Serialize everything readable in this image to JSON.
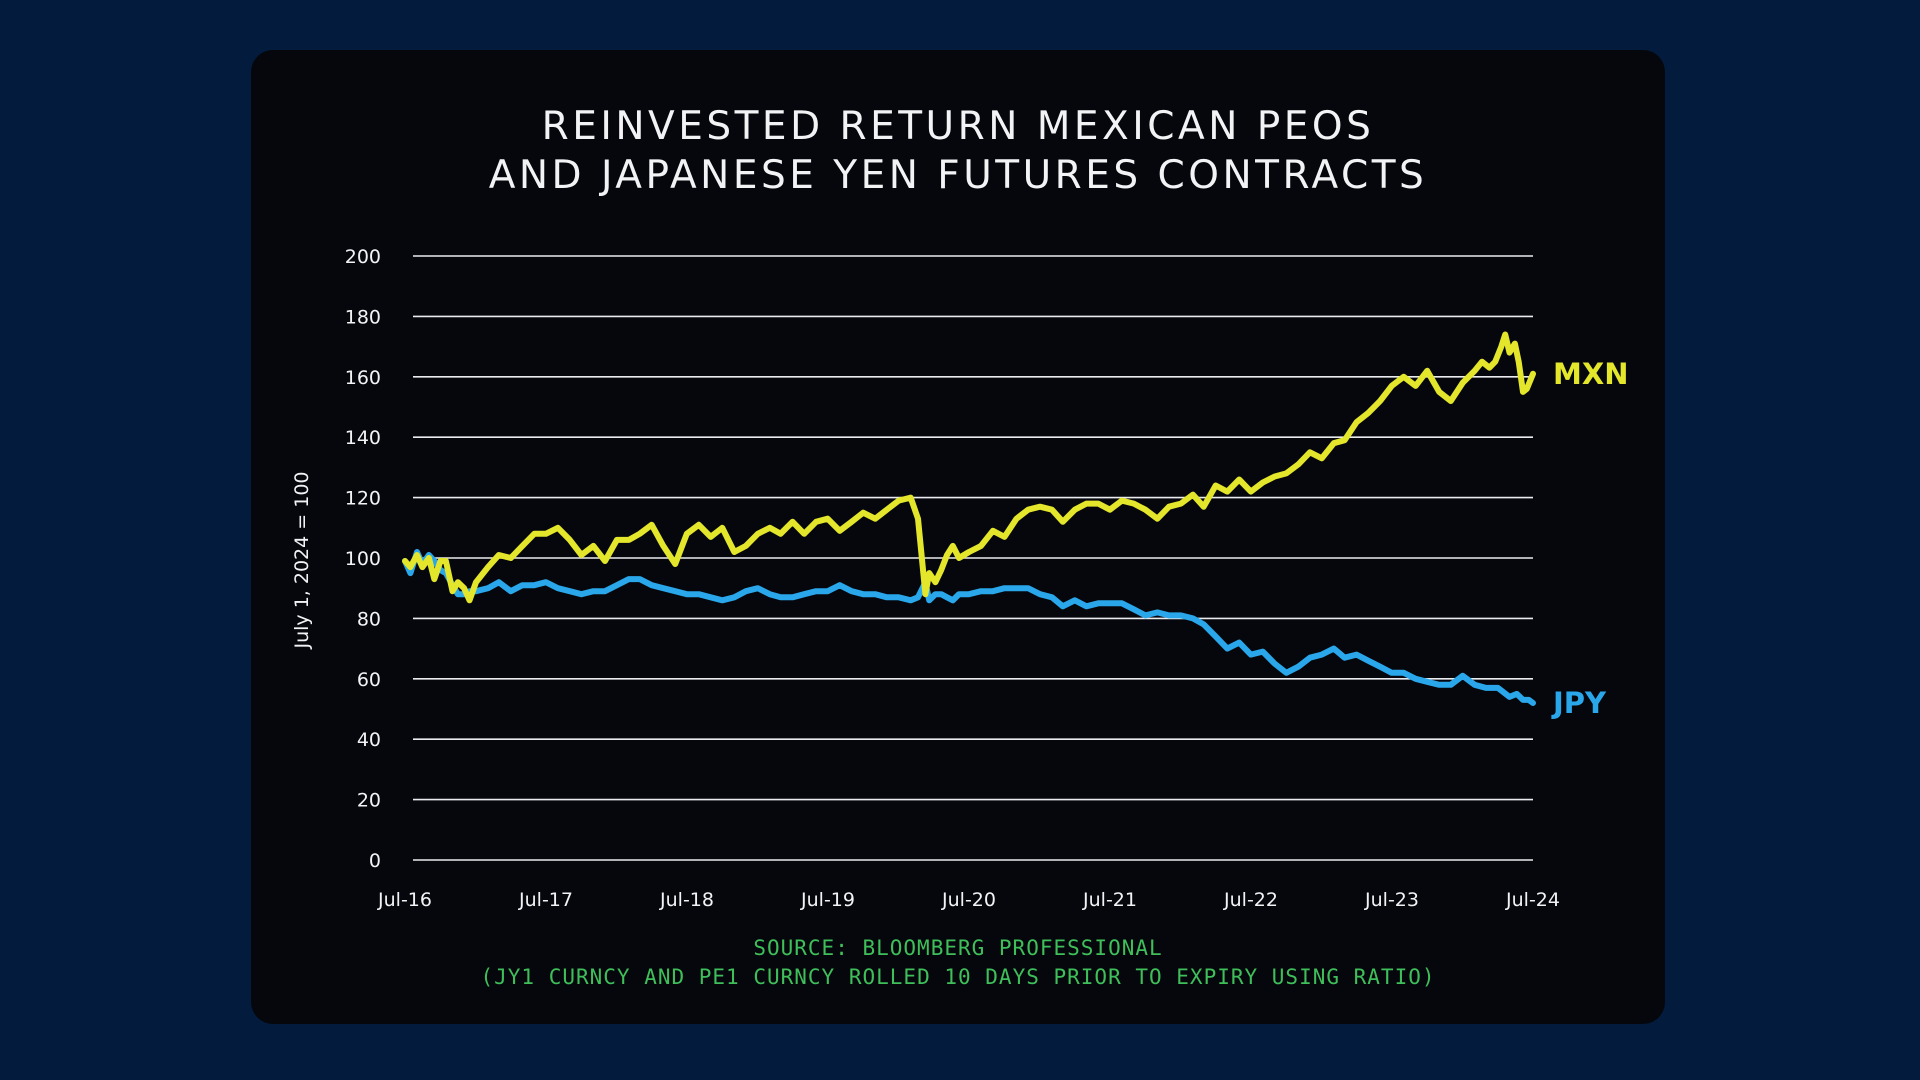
{
  "title": {
    "line1": "REINVESTED RETURN MEXICAN PEOS",
    "line2": "AND JAPANESE YEN FUTURES CONTRACTS"
  },
  "source": {
    "line1": "SOURCE: BLOOMBERG PROFESSIONAL",
    "line2": "(JY1 CURNCY AND PE1 CURNCY ROLLED 10 DAYS PRIOR TO EXPIRY USING RATIO)"
  },
  "colors": {
    "background": "#031c3d",
    "card": "#05070d",
    "mxn": "#e3e62b",
    "jpy": "#2aa7ea",
    "source": "#3fbf5a",
    "text": "#f2f3f5"
  },
  "chart_data": {
    "type": "line",
    "title": "REINVESTED RETURN MEXICAN PEOS AND JAPANESE YEN FUTURES CONTRACTS",
    "ylabel": "July 1, 2024 = 100",
    "xlabel": "",
    "ylim": [
      0,
      200
    ],
    "yticks": [
      "0",
      "20",
      "40",
      "60",
      "80",
      "100",
      "120",
      "140",
      "160",
      "180",
      "200"
    ],
    "xlim": [
      "2016-07-01",
      "2024-07-01"
    ],
    "xticks": [
      "Jul-16",
      "Jul-17",
      "Jul-18",
      "Jul-19",
      "Jul-20",
      "Jul-21",
      "Jul-22",
      "Jul-23",
      "Jul-24"
    ],
    "grid": true,
    "legend": "end-of-line labels",
    "series": [
      {
        "name": "MXN",
        "color": "#e3e62b",
        "points": [
          [
            "2016-07-01",
            99
          ],
          [
            "2016-07-15",
            97
          ],
          [
            "2016-08-01",
            101
          ],
          [
            "2016-08-15",
            97
          ],
          [
            "2016-09-01",
            100
          ],
          [
            "2016-09-15",
            93
          ],
          [
            "2016-10-01",
            99
          ],
          [
            "2016-10-15",
            99
          ],
          [
            "2016-11-01",
            89
          ],
          [
            "2016-11-15",
            92
          ],
          [
            "2016-12-01",
            90
          ],
          [
            "2016-12-15",
            86
          ],
          [
            "2017-01-01",
            92
          ],
          [
            "2017-02-01",
            97
          ],
          [
            "2017-03-01",
            101
          ],
          [
            "2017-04-01",
            100
          ],
          [
            "2017-05-01",
            104
          ],
          [
            "2017-06-01",
            108
          ],
          [
            "2017-07-01",
            108
          ],
          [
            "2017-08-01",
            110
          ],
          [
            "2017-09-01",
            106
          ],
          [
            "2017-10-01",
            101
          ],
          [
            "2017-11-01",
            104
          ],
          [
            "2017-12-01",
            99
          ],
          [
            "2018-01-01",
            106
          ],
          [
            "2018-02-01",
            106
          ],
          [
            "2018-03-01",
            108
          ],
          [
            "2018-04-01",
            111
          ],
          [
            "2018-05-01",
            104
          ],
          [
            "2018-06-01",
            98
          ],
          [
            "2018-07-01",
            108
          ],
          [
            "2018-08-01",
            111
          ],
          [
            "2018-09-01",
            107
          ],
          [
            "2018-10-01",
            110
          ],
          [
            "2018-11-01",
            102
          ],
          [
            "2018-12-01",
            104
          ],
          [
            "2019-01-01",
            108
          ],
          [
            "2019-02-01",
            110
          ],
          [
            "2019-03-01",
            108
          ],
          [
            "2019-04-01",
            112
          ],
          [
            "2019-05-01",
            108
          ],
          [
            "2019-06-01",
            112
          ],
          [
            "2019-07-01",
            113
          ],
          [
            "2019-08-01",
            109
          ],
          [
            "2019-09-01",
            112
          ],
          [
            "2019-10-01",
            115
          ],
          [
            "2019-11-01",
            113
          ],
          [
            "2019-12-01",
            116
          ],
          [
            "2020-01-01",
            119
          ],
          [
            "2020-02-01",
            120
          ],
          [
            "2020-02-20",
            113
          ],
          [
            "2020-03-10",
            88
          ],
          [
            "2020-03-20",
            95
          ],
          [
            "2020-04-05",
            92
          ],
          [
            "2020-04-20",
            96
          ],
          [
            "2020-05-05",
            101
          ],
          [
            "2020-05-20",
            104
          ],
          [
            "2020-06-05",
            100
          ],
          [
            "2020-07-01",
            102
          ],
          [
            "2020-08-01",
            104
          ],
          [
            "2020-09-01",
            109
          ],
          [
            "2020-10-01",
            107
          ],
          [
            "2020-11-01",
            113
          ],
          [
            "2020-12-01",
            116
          ],
          [
            "2021-01-01",
            117
          ],
          [
            "2021-02-01",
            116
          ],
          [
            "2021-03-01",
            112
          ],
          [
            "2021-04-01",
            116
          ],
          [
            "2021-05-01",
            118
          ],
          [
            "2021-06-01",
            118
          ],
          [
            "2021-07-01",
            116
          ],
          [
            "2021-08-01",
            119
          ],
          [
            "2021-09-01",
            118
          ],
          [
            "2021-10-01",
            116
          ],
          [
            "2021-11-01",
            113
          ],
          [
            "2021-12-01",
            117
          ],
          [
            "2022-01-01",
            118
          ],
          [
            "2022-02-01",
            121
          ],
          [
            "2022-03-01",
            117
          ],
          [
            "2022-04-01",
            124
          ],
          [
            "2022-05-01",
            122
          ],
          [
            "2022-06-01",
            126
          ],
          [
            "2022-07-01",
            122
          ],
          [
            "2022-08-01",
            125
          ],
          [
            "2022-09-01",
            127
          ],
          [
            "2022-10-01",
            128
          ],
          [
            "2022-11-01",
            131
          ],
          [
            "2022-12-01",
            135
          ],
          [
            "2023-01-01",
            133
          ],
          [
            "2023-02-01",
            138
          ],
          [
            "2023-03-01",
            139
          ],
          [
            "2023-04-01",
            145
          ],
          [
            "2023-05-01",
            148
          ],
          [
            "2023-06-01",
            152
          ],
          [
            "2023-07-01",
            157
          ],
          [
            "2023-08-01",
            160
          ],
          [
            "2023-09-01",
            157
          ],
          [
            "2023-10-01",
            162
          ],
          [
            "2023-11-01",
            155
          ],
          [
            "2023-12-01",
            152
          ],
          [
            "2024-01-01",
            158
          ],
          [
            "2024-02-01",
            162
          ],
          [
            "2024-02-20",
            165
          ],
          [
            "2024-03-10",
            163
          ],
          [
            "2024-03-25",
            165
          ],
          [
            "2024-04-10",
            170
          ],
          [
            "2024-04-20",
            174
          ],
          [
            "2024-05-01",
            168
          ],
          [
            "2024-05-15",
            171
          ],
          [
            "2024-05-25",
            165
          ],
          [
            "2024-06-05",
            155
          ],
          [
            "2024-06-15",
            156
          ],
          [
            "2024-07-01",
            161
          ]
        ]
      },
      {
        "name": "JPY",
        "color": "#2aa7ea",
        "points": [
          [
            "2016-07-01",
            99
          ],
          [
            "2016-07-15",
            95
          ],
          [
            "2016-08-01",
            102
          ],
          [
            "2016-08-15",
            98
          ],
          [
            "2016-09-01",
            101
          ],
          [
            "2016-09-15",
            99
          ],
          [
            "2016-10-01",
            96
          ],
          [
            "2016-10-15",
            95
          ],
          [
            "2016-11-01",
            91
          ],
          [
            "2016-11-15",
            88
          ],
          [
            "2016-12-01",
            88
          ],
          [
            "2016-12-15",
            89
          ],
          [
            "2017-01-01",
            89
          ],
          [
            "2017-02-01",
            90
          ],
          [
            "2017-03-01",
            92
          ],
          [
            "2017-04-01",
            89
          ],
          [
            "2017-05-01",
            91
          ],
          [
            "2017-06-01",
            91
          ],
          [
            "2017-07-01",
            92
          ],
          [
            "2017-08-01",
            90
          ],
          [
            "2017-09-01",
            89
          ],
          [
            "2017-10-01",
            88
          ],
          [
            "2017-11-01",
            89
          ],
          [
            "2017-12-01",
            89
          ],
          [
            "2018-01-01",
            91
          ],
          [
            "2018-02-01",
            93
          ],
          [
            "2018-03-01",
            93
          ],
          [
            "2018-04-01",
            91
          ],
          [
            "2018-05-01",
            90
          ],
          [
            "2018-06-01",
            89
          ],
          [
            "2018-07-01",
            88
          ],
          [
            "2018-08-01",
            88
          ],
          [
            "2018-09-01",
            87
          ],
          [
            "2018-10-01",
            86
          ],
          [
            "2018-11-01",
            87
          ],
          [
            "2018-12-01",
            89
          ],
          [
            "2019-01-01",
            90
          ],
          [
            "2019-02-01",
            88
          ],
          [
            "2019-03-01",
            87
          ],
          [
            "2019-04-01",
            87
          ],
          [
            "2019-05-01",
            88
          ],
          [
            "2019-06-01",
            89
          ],
          [
            "2019-07-01",
            89
          ],
          [
            "2019-08-01",
            91
          ],
          [
            "2019-09-01",
            89
          ],
          [
            "2019-10-01",
            88
          ],
          [
            "2019-11-01",
            88
          ],
          [
            "2019-12-01",
            87
          ],
          [
            "2020-01-01",
            87
          ],
          [
            "2020-02-01",
            86
          ],
          [
            "2020-02-20",
            87
          ],
          [
            "2020-03-10",
            92
          ],
          [
            "2020-03-20",
            86
          ],
          [
            "2020-04-05",
            88
          ],
          [
            "2020-04-20",
            88
          ],
          [
            "2020-05-05",
            87
          ],
          [
            "2020-05-20",
            86
          ],
          [
            "2020-06-05",
            88
          ],
          [
            "2020-07-01",
            88
          ],
          [
            "2020-08-01",
            89
          ],
          [
            "2020-09-01",
            89
          ],
          [
            "2020-10-01",
            90
          ],
          [
            "2020-11-01",
            90
          ],
          [
            "2020-12-01",
            90
          ],
          [
            "2021-01-01",
            88
          ],
          [
            "2021-02-01",
            87
          ],
          [
            "2021-03-01",
            84
          ],
          [
            "2021-04-01",
            86
          ],
          [
            "2021-05-01",
            84
          ],
          [
            "2021-06-01",
            85
          ],
          [
            "2021-07-01",
            85
          ],
          [
            "2021-08-01",
            85
          ],
          [
            "2021-09-01",
            83
          ],
          [
            "2021-10-01",
            81
          ],
          [
            "2021-11-01",
            82
          ],
          [
            "2021-12-01",
            81
          ],
          [
            "2022-01-01",
            81
          ],
          [
            "2022-02-01",
            80
          ],
          [
            "2022-03-01",
            78
          ],
          [
            "2022-04-01",
            74
          ],
          [
            "2022-05-01",
            70
          ],
          [
            "2022-06-01",
            72
          ],
          [
            "2022-07-01",
            68
          ],
          [
            "2022-08-01",
            69
          ],
          [
            "2022-09-01",
            65
          ],
          [
            "2022-10-01",
            62
          ],
          [
            "2022-11-01",
            64
          ],
          [
            "2022-12-01",
            67
          ],
          [
            "2023-01-01",
            68
          ],
          [
            "2023-02-01",
            70
          ],
          [
            "2023-03-01",
            67
          ],
          [
            "2023-04-01",
            68
          ],
          [
            "2023-05-01",
            66
          ],
          [
            "2023-06-01",
            64
          ],
          [
            "2023-07-01",
            62
          ],
          [
            "2023-08-01",
            62
          ],
          [
            "2023-09-01",
            60
          ],
          [
            "2023-10-01",
            59
          ],
          [
            "2023-11-01",
            58
          ],
          [
            "2023-12-01",
            58
          ],
          [
            "2024-01-01",
            61
          ],
          [
            "2024-02-01",
            58
          ],
          [
            "2024-03-01",
            57
          ],
          [
            "2024-04-01",
            57
          ],
          [
            "2024-05-01",
            54
          ],
          [
            "2024-05-20",
            55
          ],
          [
            "2024-06-05",
            53
          ],
          [
            "2024-06-20",
            53
          ],
          [
            "2024-07-01",
            52
          ]
        ]
      }
    ]
  }
}
